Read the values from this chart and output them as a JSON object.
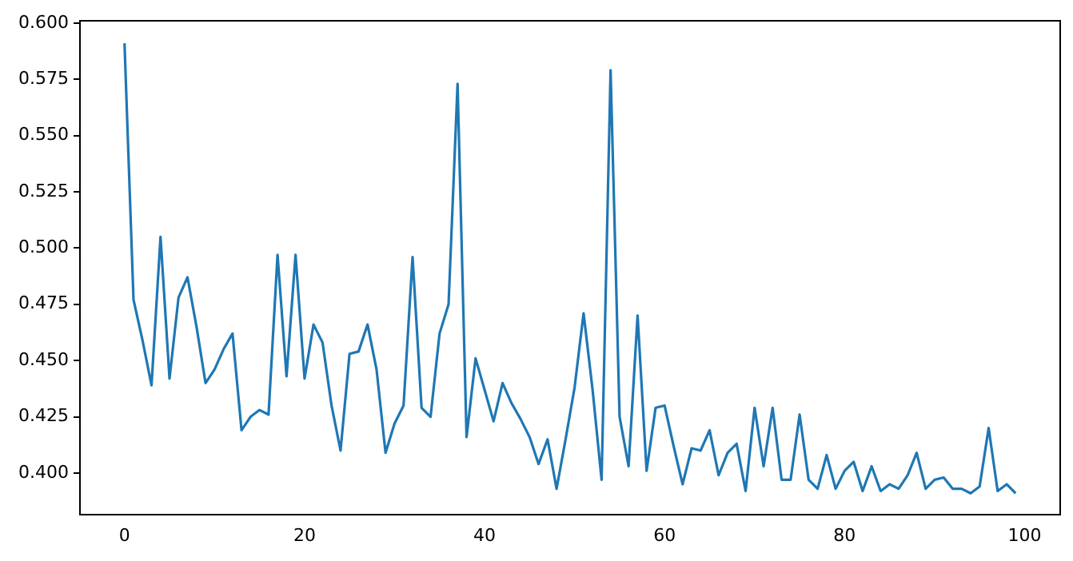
{
  "chart_data": {
    "type": "line",
    "x": [
      0,
      1,
      2,
      3,
      4,
      5,
      6,
      7,
      8,
      9,
      10,
      11,
      12,
      13,
      14,
      15,
      16,
      17,
      18,
      19,
      20,
      21,
      22,
      23,
      24,
      25,
      26,
      27,
      28,
      29,
      30,
      31,
      32,
      33,
      34,
      35,
      36,
      37,
      38,
      39,
      40,
      41,
      42,
      43,
      44,
      45,
      46,
      47,
      48,
      49,
      50,
      51,
      52,
      53,
      54,
      55,
      56,
      57,
      58,
      59,
      60,
      61,
      62,
      63,
      64,
      65,
      66,
      67,
      68,
      69,
      70,
      71,
      72,
      73,
      74,
      75,
      76,
      77,
      78,
      79,
      80,
      81,
      82,
      83,
      84,
      85,
      86,
      87,
      88,
      89,
      90,
      91,
      92,
      93,
      94,
      95,
      96,
      97,
      98,
      99
    ],
    "series": [
      {
        "color": "#1f77b4",
        "values": [
          0.591,
          0.477,
          0.459,
          0.439,
          0.505,
          0.442,
          0.478,
          0.487,
          0.465,
          0.44,
          0.446,
          0.455,
          0.462,
          0.419,
          0.425,
          0.428,
          0.426,
          0.497,
          0.443,
          0.497,
          0.442,
          0.466,
          0.458,
          0.43,
          0.41,
          0.453,
          0.454,
          0.466,
          0.446,
          0.409,
          0.422,
          0.43,
          0.496,
          0.429,
          0.425,
          0.462,
          0.475,
          0.573,
          0.416,
          0.451,
          0.437,
          0.423,
          0.44,
          0.431,
          0.424,
          0.416,
          0.404,
          0.415,
          0.393,
          0.415,
          0.438,
          0.471,
          0.437,
          0.397,
          0.579,
          0.425,
          0.403,
          0.47,
          0.401,
          0.429,
          0.43,
          0.412,
          0.395,
          0.411,
          0.41,
          0.419,
          0.399,
          0.409,
          0.413,
          0.392,
          0.429,
          0.403,
          0.429,
          0.397,
          0.397,
          0.426,
          0.397,
          0.393,
          0.408,
          0.393,
          0.401,
          0.405,
          0.392,
          0.403,
          0.392,
          0.395,
          0.393,
          0.399,
          0.409,
          0.393,
          0.397,
          0.398,
          0.393,
          0.393,
          0.391,
          0.394,
          0.42,
          0.392,
          0.395,
          0.391
        ]
      }
    ],
    "xlim": [
      -4.95,
      103.95
    ],
    "xticks": [
      0,
      20,
      40,
      60,
      80,
      100
    ],
    "ylim": [
      0.3815,
      0.601
    ],
    "yticks": [
      {
        "value": 0.4,
        "label": "0.400"
      },
      {
        "value": 0.425,
        "label": "0.425"
      },
      {
        "value": 0.45,
        "label": "0.450"
      },
      {
        "value": 0.475,
        "label": "0.475"
      },
      {
        "value": 0.5,
        "label": "0.500"
      },
      {
        "value": 0.525,
        "label": "0.525"
      },
      {
        "value": 0.55,
        "label": "0.550"
      },
      {
        "value": 0.575,
        "label": "0.575"
      },
      {
        "value": 0.6,
        "label": "0.600"
      }
    ],
    "grid": false,
    "legend": false,
    "marker": "none",
    "line_style": "solid"
  }
}
